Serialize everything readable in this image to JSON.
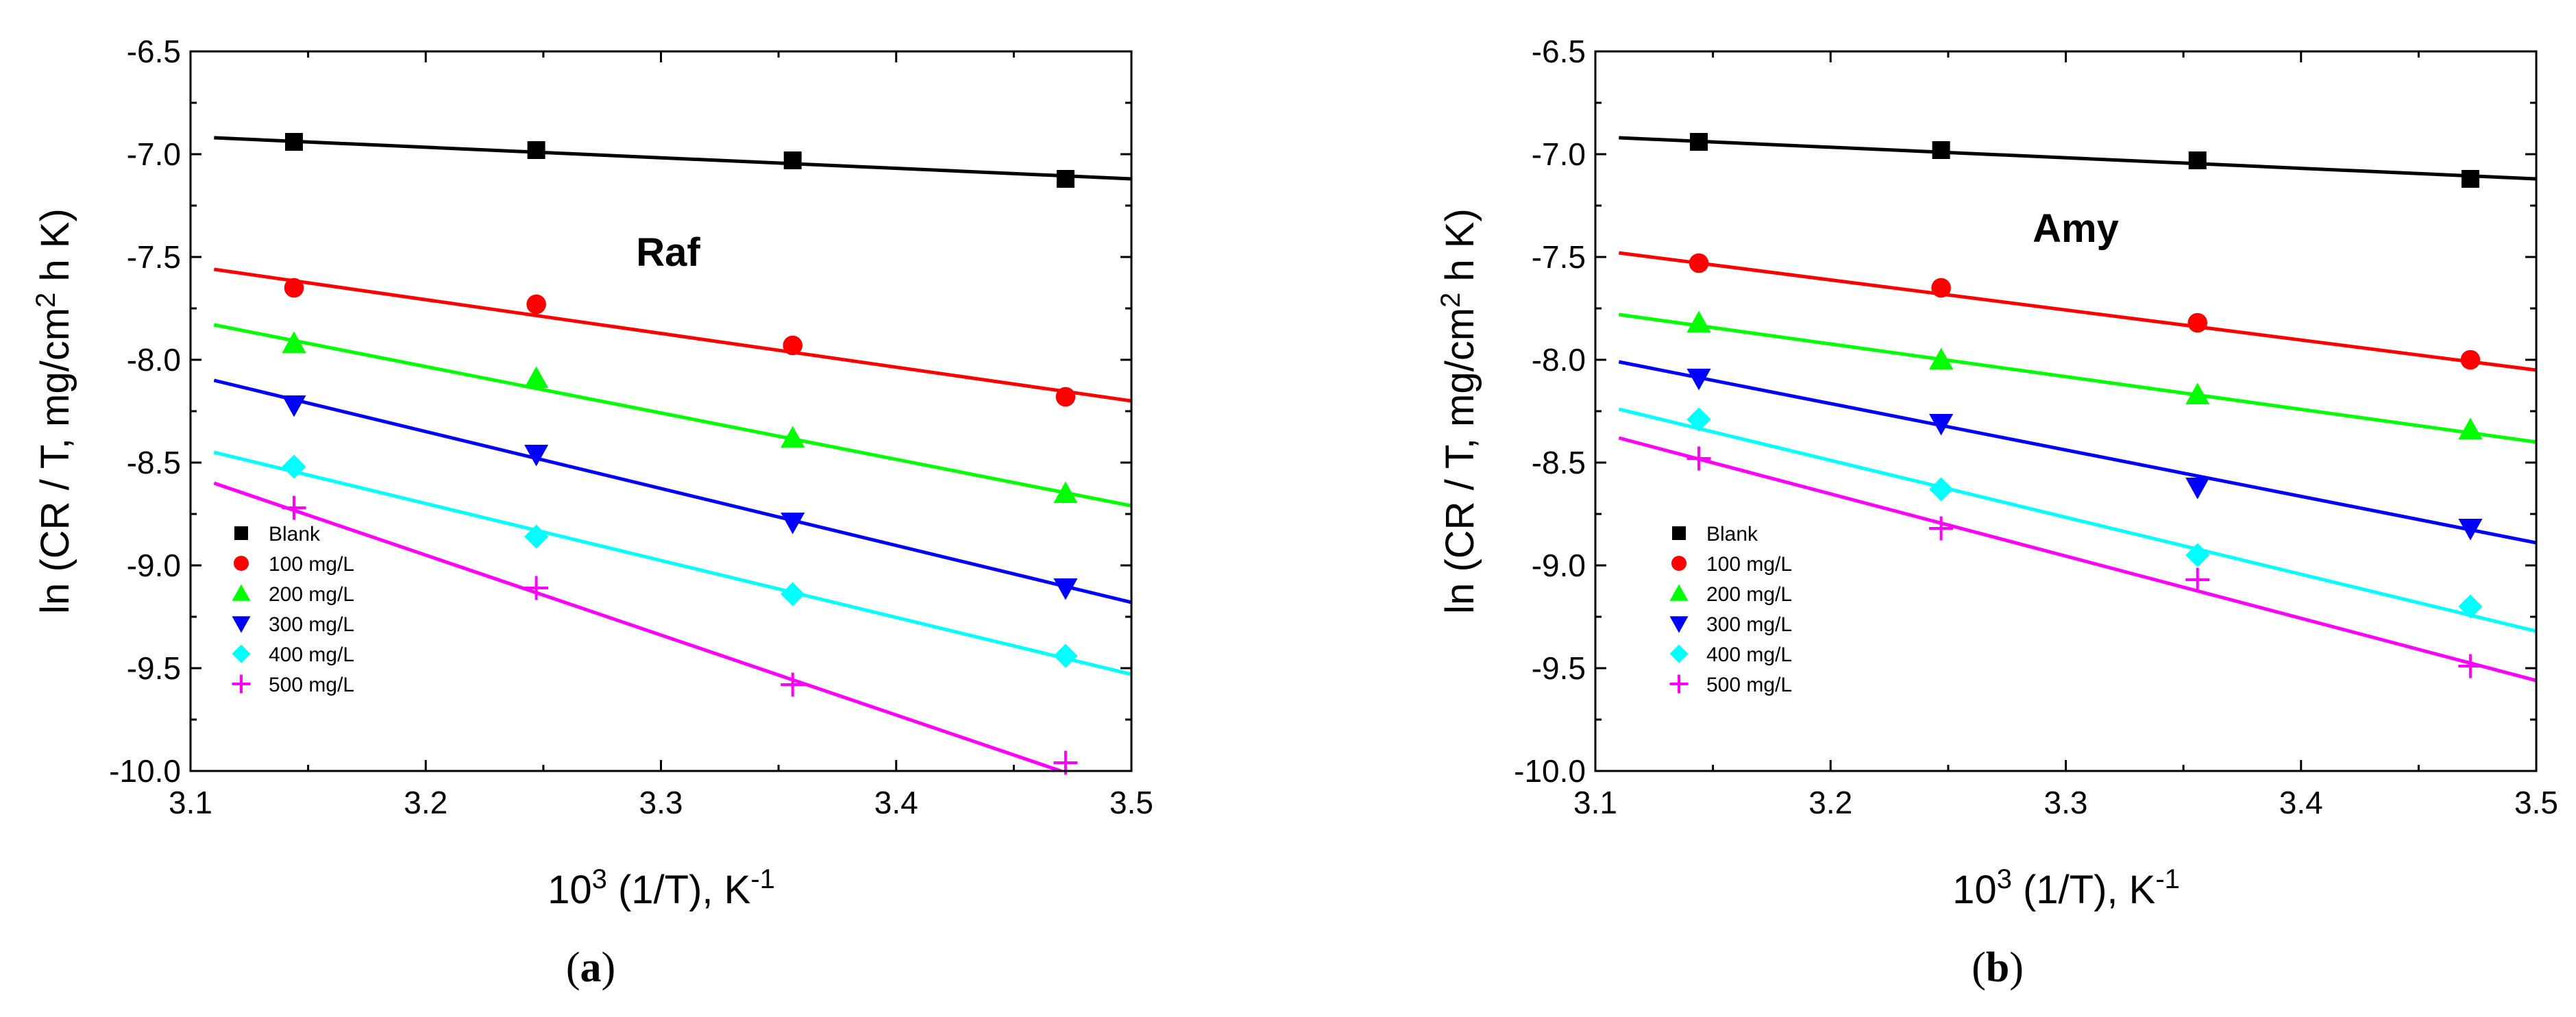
{
  "chart_data": [
    {
      "type": "scatter",
      "panel": "a",
      "caption_letter": "a",
      "annotation": "Raf",
      "xlabel_base": "10",
      "xlabel_base_sup": "3",
      "xlabel_mid": " (1/T), K",
      "xlabel_unit_sup": "-1",
      "ylabel_main": "ln (CR / T, mg/cm",
      "ylabel_sup": "2",
      "ylabel_tail": " h K)",
      "xlim": [
        3.1,
        3.5
      ],
      "ylim": [
        -10.0,
        -6.5
      ],
      "xticks": [
        3.1,
        3.2,
        3.3,
        3.4,
        3.5
      ],
      "xtick_labels": [
        "3.1",
        "3.2",
        "3.3",
        "3.4",
        "3.5"
      ],
      "yticks": [
        -10.0,
        -9.5,
        -9.0,
        -8.5,
        -8.0,
        -7.5,
        -7.0,
        -6.5
      ],
      "ytick_labels": [
        "-10.0",
        "-9.5",
        "-9.0",
        "-8.5",
        "-8.0",
        "-7.5",
        "-7.0",
        "-6.5"
      ],
      "x": [
        3.144,
        3.247,
        3.356,
        3.472
      ],
      "legend_position": "bottom-left",
      "series": [
        {
          "name": "Blank",
          "marker": "square",
          "color": "#000000",
          "values": [
            -6.94,
            -6.98,
            -7.03,
            -7.12
          ],
          "fit": {
            "x": [
              3.11,
              3.5
            ],
            "y": [
              -6.92,
              -7.12
            ]
          }
        },
        {
          "name": "100 mg/L",
          "marker": "circle",
          "color": "#ff0000",
          "values": [
            -7.65,
            -7.73,
            -7.93,
            -8.18
          ],
          "fit": {
            "x": [
              3.11,
              3.5
            ],
            "y": [
              -7.56,
              -8.2
            ]
          }
        },
        {
          "name": "200 mg/L",
          "marker": "triangle-up",
          "color": "#00ff00",
          "values": [
            -7.92,
            -8.09,
            -8.38,
            -8.65
          ],
          "fit": {
            "x": [
              3.11,
              3.5
            ],
            "y": [
              -7.83,
              -8.71
            ]
          }
        },
        {
          "name": "300 mg/L",
          "marker": "triangle-down",
          "color": "#0000ff",
          "values": [
            -8.22,
            -8.46,
            -8.79,
            -9.11
          ],
          "fit": {
            "x": [
              3.11,
              3.5
            ],
            "y": [
              -8.1,
              -9.18
            ]
          }
        },
        {
          "name": "400 mg/L",
          "marker": "diamond",
          "color": "#00ffff",
          "values": [
            -8.52,
            -8.86,
            -9.14,
            -9.44
          ],
          "fit": {
            "x": [
              3.11,
              3.5
            ],
            "y": [
              -8.45,
              -9.53
            ]
          }
        },
        {
          "name": "500 mg/L",
          "marker": "plus",
          "color": "#ff00ff",
          "values": [
            -8.72,
            -9.11,
            -9.58,
            -9.96
          ],
          "fit": {
            "x": [
              3.11,
              3.47
            ],
            "y": [
              -8.6,
              -10.0
            ]
          }
        }
      ]
    },
    {
      "type": "scatter",
      "panel": "b",
      "caption_letter": "b",
      "annotation": "Amy",
      "xlabel_base": "10",
      "xlabel_base_sup": "3",
      "xlabel_mid": " (1/T), K",
      "xlabel_unit_sup": "-1",
      "ylabel_main": "ln (CR / T, mg/cm",
      "ylabel_sup": "2",
      "ylabel_tail": " h K)",
      "xlim": [
        3.1,
        3.5
      ],
      "ylim": [
        -10.0,
        -6.5
      ],
      "xticks": [
        3.1,
        3.2,
        3.3,
        3.4,
        3.5
      ],
      "xtick_labels": [
        "3.1",
        "3.2",
        "3.3",
        "3.4",
        "3.5"
      ],
      "yticks": [
        -10.0,
        -9.5,
        -9.0,
        -8.5,
        -8.0,
        -7.5,
        -7.0,
        -6.5
      ],
      "ytick_labels": [
        "-10.0",
        "-9.5",
        "-9.0",
        "-8.5",
        "-8.0",
        "-7.5",
        "-7.0",
        "-6.5"
      ],
      "x": [
        3.144,
        3.247,
        3.356,
        3.472
      ],
      "legend_position": "bottom-left",
      "series": [
        {
          "name": "Blank",
          "marker": "square",
          "color": "#000000",
          "values": [
            -6.94,
            -6.98,
            -7.03,
            -7.12
          ],
          "fit": {
            "x": [
              3.11,
              3.5
            ],
            "y": [
              -6.92,
              -7.12
            ]
          }
        },
        {
          "name": "100 mg/L",
          "marker": "circle",
          "color": "#ff0000",
          "values": [
            -7.53,
            -7.65,
            -7.82,
            -8.0
          ],
          "fit": {
            "x": [
              3.11,
              3.5
            ],
            "y": [
              -7.48,
              -8.05
            ]
          }
        },
        {
          "name": "200 mg/L",
          "marker": "triangle-up",
          "color": "#00ff00",
          "values": [
            -7.82,
            -8.0,
            -8.17,
            -8.34
          ],
          "fit": {
            "x": [
              3.11,
              3.5
            ],
            "y": [
              -7.78,
              -8.4
            ]
          }
        },
        {
          "name": "300 mg/L",
          "marker": "triangle-down",
          "color": "#0000ff",
          "values": [
            -8.09,
            -8.31,
            -8.62,
            -8.82
          ],
          "fit": {
            "x": [
              3.11,
              3.5
            ],
            "y": [
              -8.01,
              -8.89
            ]
          }
        },
        {
          "name": "400 mg/L",
          "marker": "diamond",
          "color": "#00ffff",
          "values": [
            -8.29,
            -8.63,
            -8.95,
            -9.2
          ],
          "fit": {
            "x": [
              3.11,
              3.5
            ],
            "y": [
              -8.24,
              -9.32
            ]
          }
        },
        {
          "name": "500 mg/L",
          "marker": "plus",
          "color": "#ff00ff",
          "values": [
            -8.48,
            -8.82,
            -9.07,
            -9.49
          ],
          "fit": {
            "x": [
              3.11,
              3.5
            ],
            "y": [
              -8.38,
              -9.56
            ]
          }
        }
      ]
    }
  ]
}
